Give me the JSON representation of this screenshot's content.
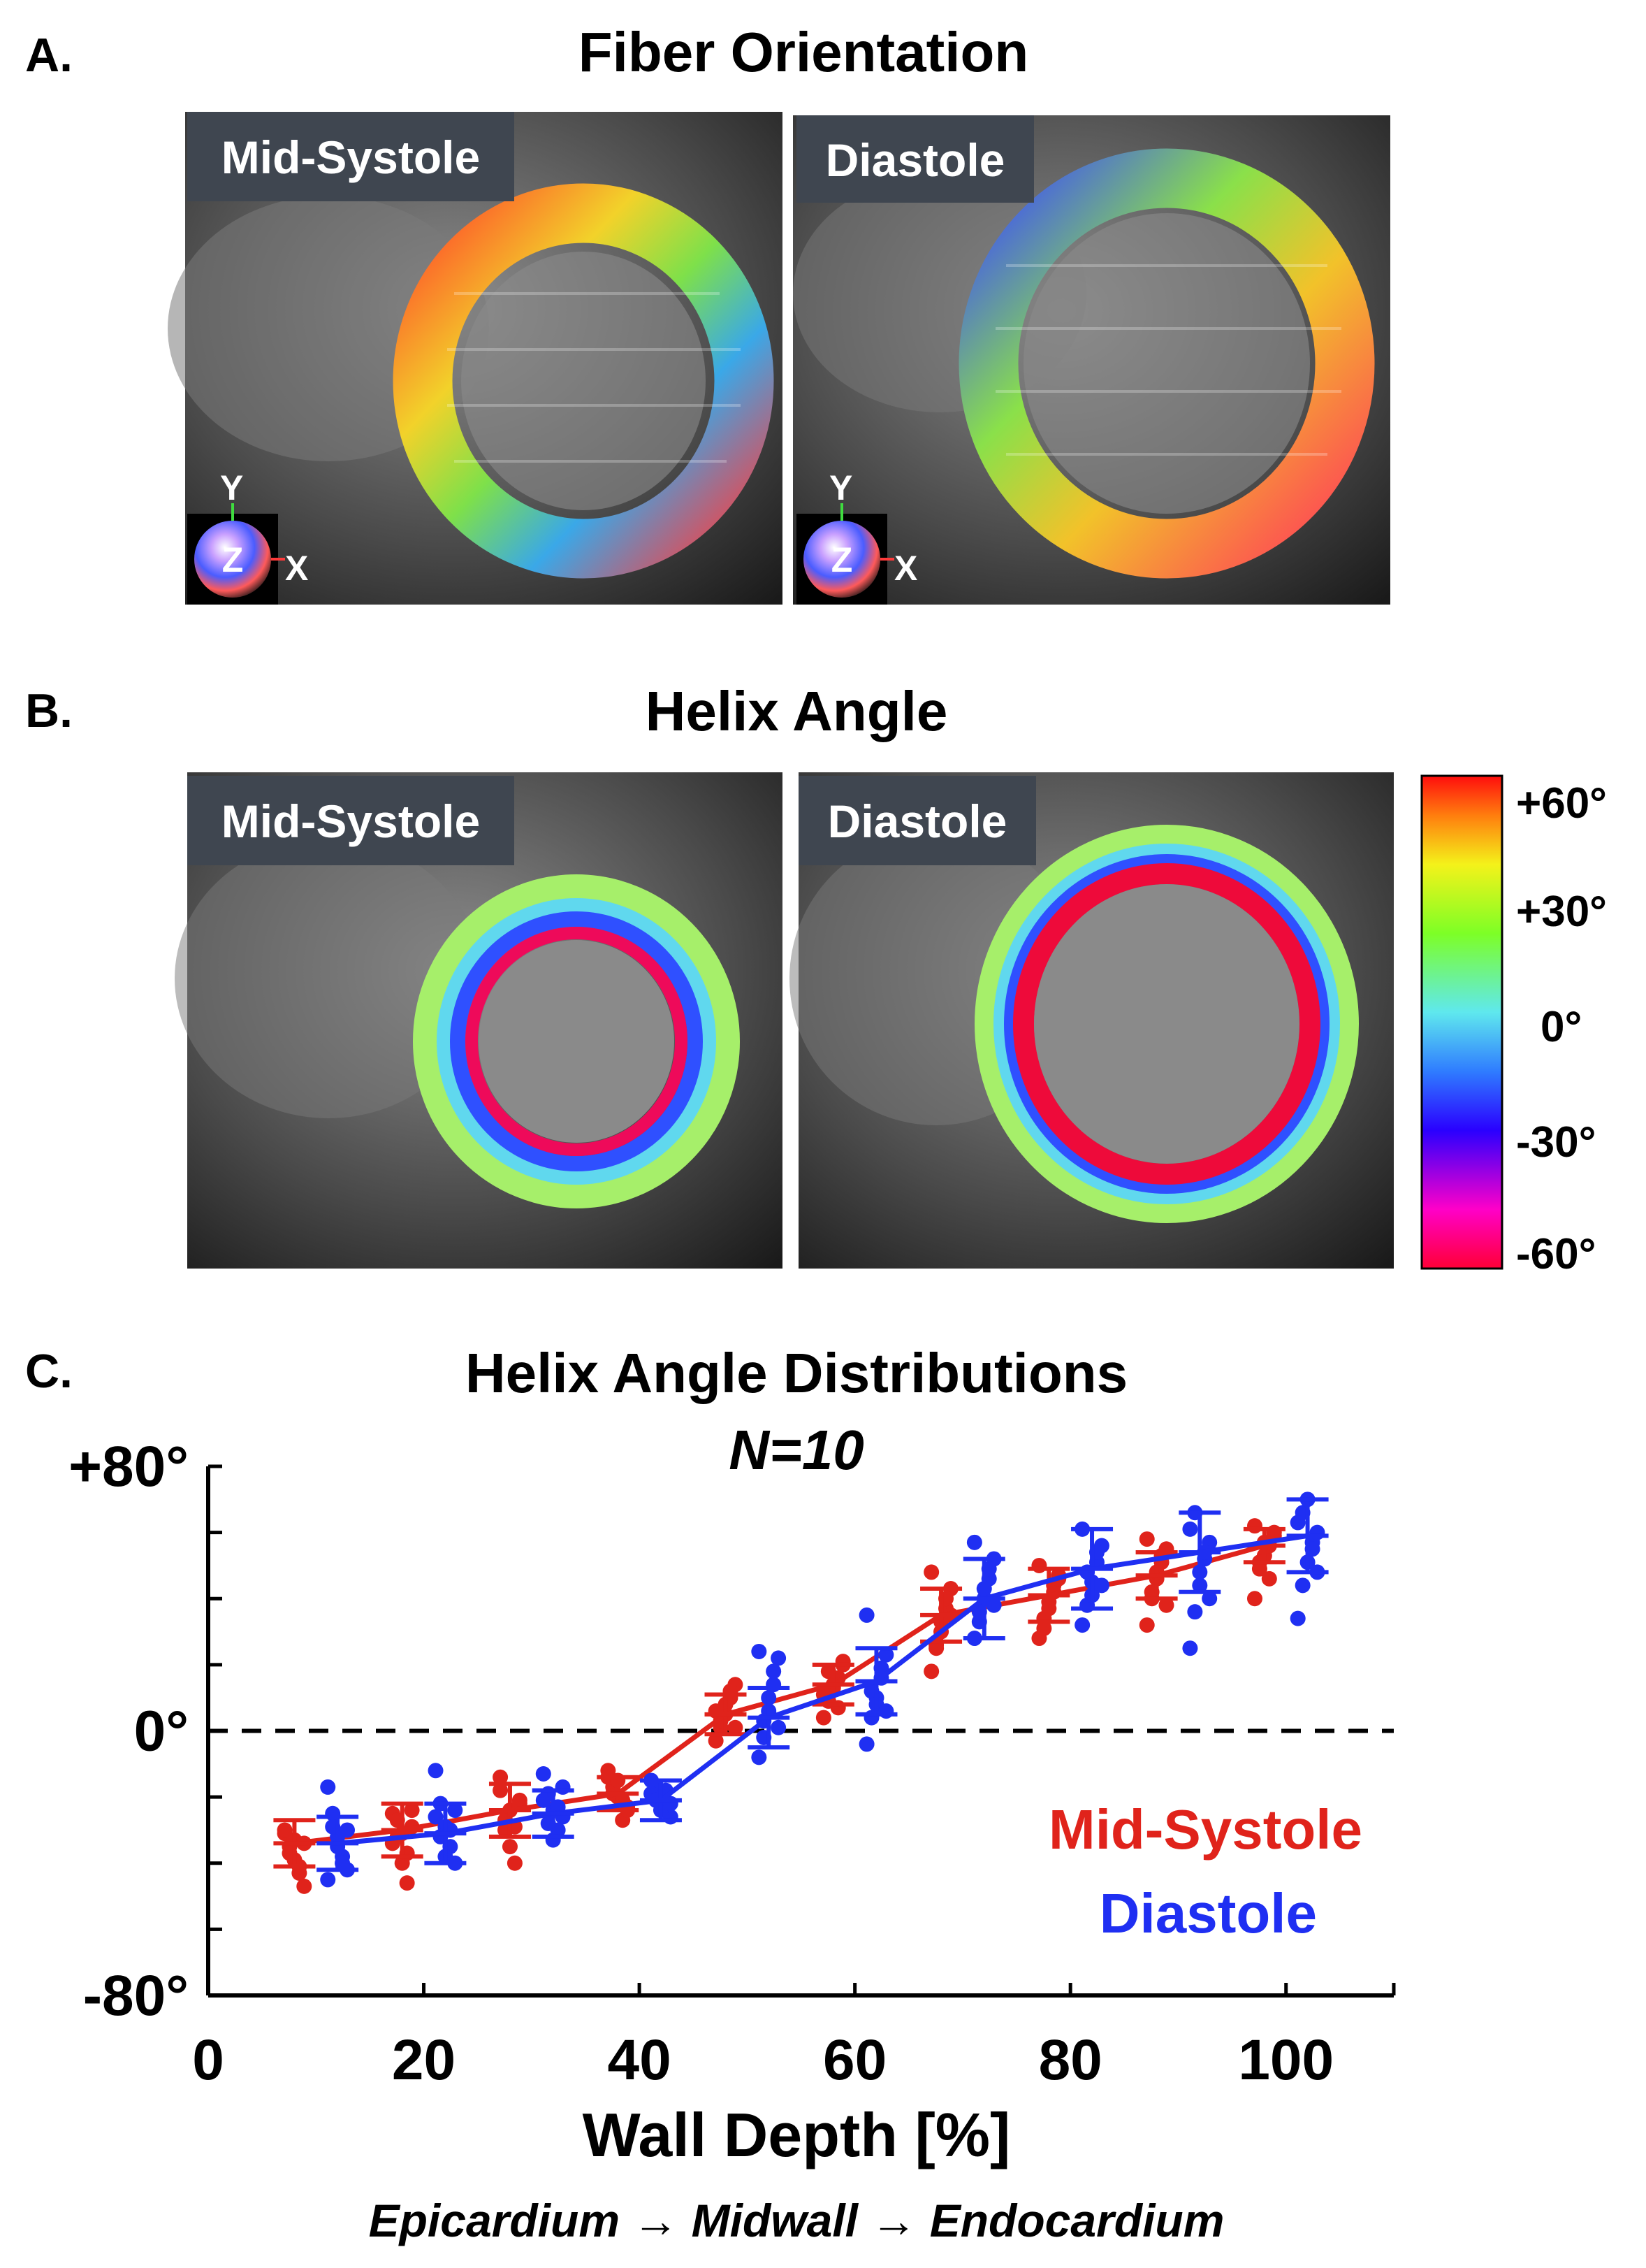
{
  "panel_a": {
    "letter": "A.",
    "title": "Fiber Orientation",
    "left_label": "Mid-Systole",
    "right_label": "Diastole",
    "axis_y": "Y",
    "axis_z": "Z",
    "axis_x": "X"
  },
  "panel_b": {
    "letter": "B.",
    "title": "Helix Angle",
    "left_label": "Mid-Systole",
    "right_label": "Diastole",
    "colorbar_ticks": [
      "+60°",
      "+30°",
      "0°",
      "-30°",
      "-60°"
    ]
  },
  "chart_data": {
    "type": "scatter",
    "letter": "C.",
    "title": "Helix Angle Distributions",
    "subtitle": "N=10",
    "xlabel": "Wall Depth [%]",
    "xsublabel": "Epicardium → Midwall → Endocardium",
    "ylabel": "",
    "xlim": [
      0,
      110
    ],
    "ylim": [
      -80,
      80
    ],
    "xticks": [
      "0",
      "20",
      "40",
      "60",
      "80",
      "100"
    ],
    "yticks": [
      "+80°",
      "0°",
      "-80°"
    ],
    "reference_line": 0,
    "x": [
      10,
      20,
      30,
      40,
      50,
      60,
      70,
      80,
      90,
      100
    ],
    "series": [
      {
        "name": "Mid-Systole",
        "color": "#e0231b",
        "mean": [
          -34,
          -30,
          -24,
          -19,
          5,
          14,
          35,
          41,
          47,
          56
        ],
        "sd": [
          7,
          8,
          8,
          5,
          6,
          6,
          8,
          8,
          7,
          5
        ],
        "points": [
          [
            -31,
            -35,
            -39,
            -43,
            -47,
            -30,
            -37,
            -33,
            -41,
            -34
          ],
          [
            -25,
            -32,
            -40,
            -46,
            -29,
            -34,
            -27,
            -31,
            -37,
            -24
          ],
          [
            -14,
            -30,
            -35,
            -40,
            -21,
            -18,
            -27,
            -24,
            -29,
            -22
          ],
          [
            -12,
            -17,
            -20,
            -27,
            -23,
            -14,
            -19,
            -15,
            -21,
            -24
          ],
          [
            -3,
            1,
            5,
            10,
            14,
            6,
            3,
            8,
            12,
            1
          ],
          [
            4,
            9,
            13,
            16,
            21,
            11,
            18,
            14,
            7,
            20
          ],
          [
            18,
            25,
            30,
            37,
            43,
            48,
            26,
            33,
            40,
            35
          ],
          [
            28,
            34,
            39,
            44,
            47,
            50,
            31,
            37,
            42,
            46
          ],
          [
            32,
            40,
            46,
            51,
            55,
            58,
            42,
            48,
            53,
            38
          ],
          [
            40,
            49,
            53,
            56,
            59,
            62,
            51,
            57,
            46,
            60
          ]
        ]
      },
      {
        "name": "Diastole",
        "color": "#1f2ff2",
        "mean": [
          -34,
          -31,
          -25,
          -21,
          4,
          15,
          40,
          49,
          54,
          59
        ],
        "sd": [
          8,
          9,
          7,
          6,
          9,
          10,
          12,
          12,
          12,
          11
        ],
        "points": [
          [
            -17,
            -25,
            -32,
            -38,
            -42,
            -45,
            -29,
            -35,
            -40,
            -30
          ],
          [
            -12,
            -22,
            -29,
            -35,
            -40,
            -26,
            -32,
            -38,
            -30,
            -24
          ],
          [
            -13,
            -19,
            -24,
            -30,
            -26,
            -21,
            -28,
            -33,
            -23,
            -17
          ],
          [
            -15,
            -17,
            -20,
            -23,
            -26,
            -19,
            -21,
            -24,
            -18,
            -22
          ],
          [
            -8,
            -2,
            6,
            14,
            22,
            24,
            3,
            10,
            18,
            1
          ],
          [
            -4,
            4,
            10,
            16,
            23,
            35,
            12,
            8,
            19,
            6
          ],
          [
            28,
            33,
            40,
            46,
            52,
            57,
            36,
            43,
            49,
            38
          ],
          [
            32,
            38,
            45,
            51,
            56,
            61,
            48,
            41,
            54,
            44
          ],
          [
            25,
            36,
            44,
            52,
            57,
            61,
            66,
            48,
            54,
            40
          ],
          [
            34,
            44,
            51,
            57,
            60,
            63,
            66,
            70,
            55,
            48
          ]
        ]
      }
    ],
    "legend_position": "lower-right"
  }
}
